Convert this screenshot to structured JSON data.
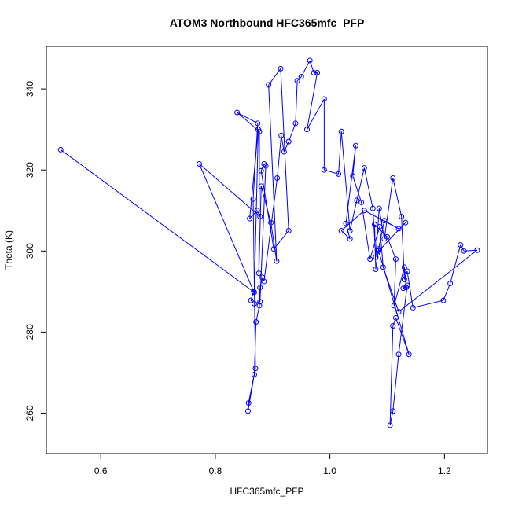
{
  "chart_data": {
    "type": "line",
    "title": "ATOM3 Northbound HFC365mfc_PFP",
    "xlabel": "HFC365mfc_PFP",
    "ylabel": "Theta (K)",
    "xlim": [
      0.505,
      1.275
    ],
    "ylim": [
      250.0,
      350.5
    ],
    "xticks": [
      "0.6",
      "0.8",
      "1.0",
      "1.2"
    ],
    "yticks": [
      "260",
      "280",
      "300",
      "320",
      "340"
    ],
    "grid": false,
    "color": "#0000ff",
    "x": [
      0.53,
      0.868,
      0.875,
      0.86,
      0.873,
      0.878,
      0.772,
      0.867,
      0.862,
      0.868,
      0.878,
      0.888,
      0.885,
      0.88,
      0.902,
      0.928,
      0.914,
      0.893,
      0.907,
      0.897,
      0.88,
      0.876,
      0.877,
      0.838,
      0.874,
      0.866,
      0.87,
      0.858,
      0.857,
      0.868,
      0.871,
      0.877,
      0.878,
      0.882,
      0.885,
      0.908,
      0.915,
      0.92,
      0.928,
      0.94,
      0.943,
      0.95,
      0.965,
      0.972,
      0.978,
      0.96,
      0.99,
      0.99,
      1.015,
      1.02,
      1.035,
      1.047,
      1.06,
      1.075,
      1.08,
      1.086,
      1.095,
      1.11,
      1.125,
      1.13,
      1.135,
      1.145,
      1.198,
      1.21,
      1.228,
      1.234,
      1.257,
      1.12,
      1.093,
      1.087,
      1.07,
      1.055,
      1.04,
      1.045,
      1.028,
      1.035,
      1.02,
      1.06,
      1.12,
      1.095,
      1.085,
      1.08,
      1.078,
      1.1,
      1.115,
      1.112,
      1.13,
      1.133,
      1.128,
      1.135,
      1.12,
      1.11,
      1.105,
      1.11,
      1.115,
      1.138,
      1.085,
      1.132
    ],
    "y": [
      325.0,
      289.8,
      330.0,
      308.0,
      310.0,
      308.5,
      321.5,
      290.0,
      287.8,
      287.0,
      287.5,
      321.0,
      321.5,
      319.8,
      300.5,
      305.0,
      345.0,
      341.0,
      297.5,
      307.0,
      316.0,
      294.5,
      329.5,
      334.2,
      331.5,
      312.8,
      271.0,
      262.5,
      260.5,
      269.5,
      282.5,
      286.5,
      291.0,
      293.5,
      292.5,
      318.0,
      328.5,
      324.5,
      327.0,
      331.5,
      342.0,
      343.0,
      347.0,
      344.0,
      344.0,
      330.0,
      337.5,
      320.0,
      319.0,
      329.5,
      305.0,
      312.5,
      320.5,
      310.5,
      298.5,
      310.5,
      303.0,
      318.0,
      308.5,
      293.0,
      295.0,
      286.0,
      287.8,
      292.0,
      301.5,
      300.0,
      300.2,
      285.0,
      296.0,
      306.0,
      298.0,
      312.0,
      318.5,
      326.0,
      306.8,
      303.0,
      305.0,
      310.0,
      305.5,
      307.5,
      300.5,
      295.5,
      306.5,
      303.5,
      298.0,
      286.5,
      296.0,
      291.0,
      290.8,
      291.5,
      274.5,
      260.5,
      257.0,
      281.5,
      283.5,
      274.5,
      300.0,
      307.0
    ]
  }
}
